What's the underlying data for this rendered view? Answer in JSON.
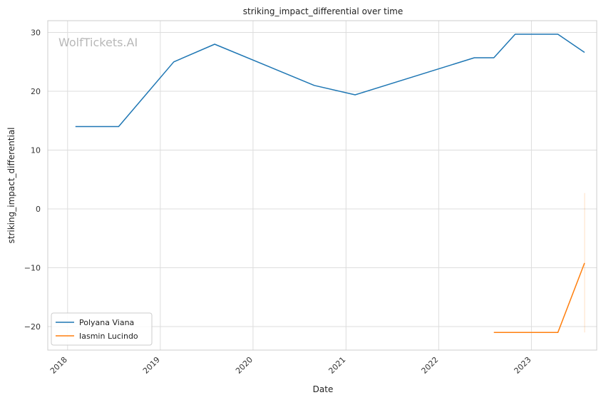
{
  "chart_data": {
    "type": "line",
    "title": "striking_impact_differential over time",
    "xlabel": "Date",
    "ylabel": "striking_impact_differential",
    "watermark": "WolfTickets.AI",
    "xlim": [
      "2017-10-15",
      "2023-09-15"
    ],
    "ylim": [
      -24,
      32
    ],
    "x_ticks": [
      "2018",
      "2019",
      "2020",
      "2021",
      "2022",
      "2023"
    ],
    "y_ticks": [
      30,
      20,
      10,
      0,
      -10,
      -20
    ],
    "y_tick_labels": [
      "30",
      "20",
      "10",
      "0",
      "−10",
      "−20"
    ],
    "grid": true,
    "legend_position": "lower-left",
    "series": [
      {
        "name": "Polyana Viana",
        "color": "#1f77b4",
        "points": [
          {
            "x": "2018-02-01",
            "y": 14
          },
          {
            "x": "2018-07-21",
            "y": 14
          },
          {
            "x": "2019-02-23",
            "y": 25
          },
          {
            "x": "2019-08-03",
            "y": 28
          },
          {
            "x": "2020-08-29",
            "y": 21
          },
          {
            "x": "2021-02-06",
            "y": 19.4
          },
          {
            "x": "2022-05-21",
            "y": 25.7
          },
          {
            "x": "2022-08-06",
            "y": 25.7
          },
          {
            "x": "2022-10-29",
            "y": 29.7
          },
          {
            "x": "2023-04-15",
            "y": 29.7
          },
          {
            "x": "2023-07-29",
            "y": 26.6
          }
        ]
      },
      {
        "name": "Iasmin Lucindo",
        "color": "#ff7f0e",
        "points": [
          {
            "x": "2022-08-06",
            "y": -21
          },
          {
            "x": "2023-04-15",
            "y": -21
          },
          {
            "x": "2023-07-29",
            "y": -9.2
          }
        ],
        "band": {
          "x": "2023-07-29",
          "low": -21,
          "high": 2.7
        }
      }
    ]
  }
}
